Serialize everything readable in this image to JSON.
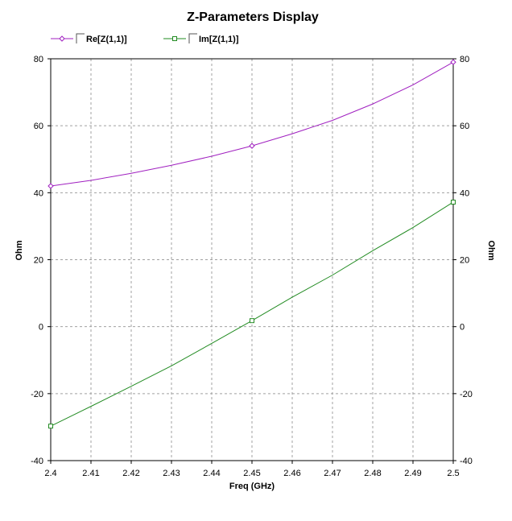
{
  "chart_data": {
    "type": "line",
    "title": "Z-Parameters Display",
    "xlabel": "Freq (GHz)",
    "ylabel": "Ohm",
    "ylabel_right": "Ohm",
    "xlim": [
      2.4,
      2.5
    ],
    "ylim": [
      -40,
      80
    ],
    "x_ticks": [
      2.4,
      2.41,
      2.42,
      2.43,
      2.44,
      2.45,
      2.46,
      2.47,
      2.48,
      2.49,
      2.5
    ],
    "x_tick_labels": [
      "2.4",
      "2.41",
      "2.42",
      "2.43",
      "2.44",
      "2.45",
      "2.46",
      "2.47",
      "2.48",
      "2.49",
      "2.5"
    ],
    "y_ticks": [
      -40,
      -20,
      0,
      20,
      40,
      60,
      80
    ],
    "y_tick_labels": [
      "-40",
      "-20",
      "0",
      "20",
      "40",
      "60",
      "80"
    ],
    "grid": true,
    "legend_position": "top-left",
    "x": [
      2.4,
      2.41,
      2.42,
      2.43,
      2.44,
      2.45,
      2.46,
      2.47,
      2.48,
      2.49,
      2.5
    ],
    "series": [
      {
        "name": "Re[Z(1,1)]",
        "color": "#a020c0",
        "marker": "diamond",
        "values": [
          42.0,
          43.7,
          45.8,
          48.2,
          50.9,
          54.0,
          57.6,
          61.6,
          66.5,
          72.2,
          79.0
        ],
        "marker_x": [
          2.4,
          2.45,
          2.5
        ]
      },
      {
        "name": "Im[Z(1,1)]",
        "color": "#228B22",
        "marker": "square",
        "values": [
          -29.7,
          -23.8,
          -17.8,
          -11.7,
          -5.0,
          1.8,
          8.8,
          15.4,
          22.7,
          29.6,
          37.2
        ],
        "marker_x": [
          2.4,
          2.45,
          2.5
        ]
      }
    ]
  }
}
